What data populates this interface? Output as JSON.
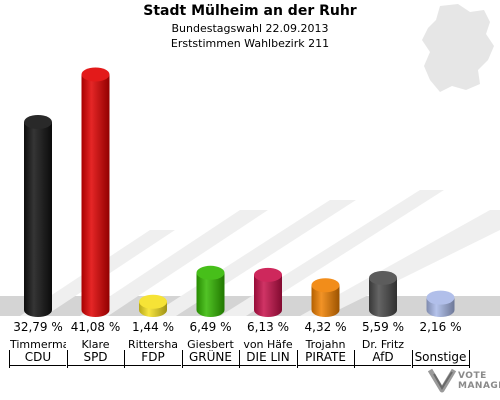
{
  "header": {
    "title": "Stadt Mülheim an der Ruhr",
    "subtitle1": "Bundestagswahl 22.09.2013",
    "subtitle2": "Erststimmen Wahlbezirk 211"
  },
  "logo": {
    "line1": "VOTE",
    "line2": "MANAGER"
  },
  "chart_data": {
    "type": "bar",
    "title": "Stadt Mülheim an der Ruhr",
    "ylim": [
      0,
      45
    ],
    "candidates": [
      "Timmerma",
      "Klare",
      "Rittersha",
      "Giesbert",
      "von Häfe",
      "Trojahn",
      "Dr. Fritz",
      ""
    ],
    "categories": [
      "CDU",
      "SPD",
      "FDP",
      "GRÜNE",
      "DIE LIN",
      "PIRATE",
      "AfD",
      "Sonstige"
    ],
    "values": [
      32.79,
      41.08,
      1.44,
      6.49,
      6.13,
      4.32,
      5.59,
      2.16
    ],
    "value_labels": [
      "32,79 %",
      "41,08 %",
      "1,44 %",
      "6,49 %",
      "6,13 %",
      "4,32 %",
      "5,59 %",
      "2,16 %"
    ],
    "colors": [
      "#111111",
      "#e00000",
      "#f5e020",
      "#33b800",
      "#c8104a",
      "#f08000",
      "#4a4a4a",
      "#a8b8e8"
    ]
  }
}
